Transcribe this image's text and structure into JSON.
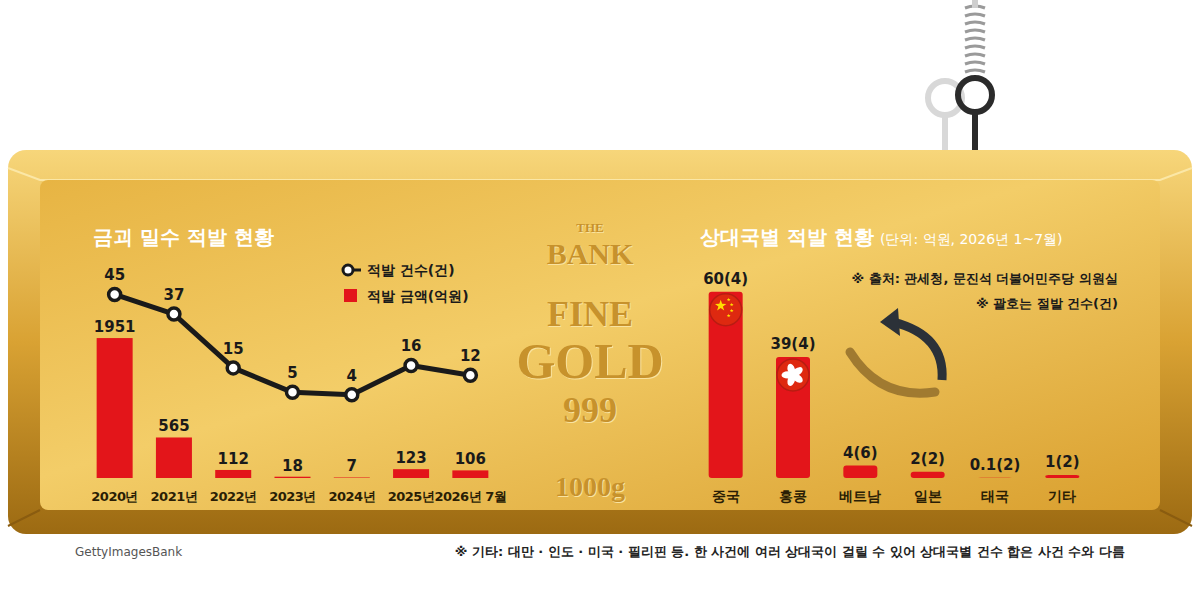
{
  "chart_data": [
    {
      "type": "bar",
      "title": "금괴 밀수 적발 현황",
      "categories": [
        "2020년",
        "2021년",
        "2022년",
        "2023년",
        "2024년",
        "2025년",
        "2026년 7월"
      ],
      "series": [
        {
          "name": "적발 건수(건)",
          "type": "line",
          "color": "#1a1a1a",
          "marker": "circle",
          "axis": "y2",
          "values": [
            45,
            37,
            15,
            5,
            4,
            16,
            12
          ]
        },
        {
          "name": "적발 금액(억원)",
          "type": "bar",
          "color": "#e3151a",
          "values": [
            1951,
            565,
            112,
            18,
            7,
            123,
            106
          ]
        }
      ],
      "ylim": [
        0,
        2900
      ],
      "y2lim": [
        -30,
        55
      ],
      "data_labels": true,
      "tick_labels": "x",
      "legend": "top-right",
      "grid": false
    },
    {
      "type": "bar",
      "title": "상대국별 적발 현황",
      "subtitle": "(단위: 억원, 2026년 1~7월)",
      "categories": [
        "중국",
        "홍콩",
        "베트남",
        "일본",
        "태국",
        "기타"
      ],
      "values": [
        60,
        39,
        4,
        2,
        0.1,
        1
      ],
      "value_labels": [
        "60(4)",
        "39(4)",
        "4(6)",
        "2(2)",
        "0.1(2)",
        "1(2)"
      ],
      "color": "#e3151a",
      "ylim": [
        0,
        67
      ],
      "data_labels": true,
      "tick_labels": "x",
      "grid": false,
      "annotations": [
        "※ 출처: 관세청, 문진석 더불어민주당 의원실",
        "※ 괄호는 절발 건수(건)",
        "※ 기타: 대만 · 인도 · 미국 · 필리핀 등. 한 사건에 여러 상대국이 걸릴 수 있어 상대국별 건수 합은 사건 수와 다름"
      ]
    }
  ],
  "ingot_text": [
    "THE",
    "BANK",
    "FINE",
    "GOLD",
    "999",
    "1000g"
  ],
  "credit": "GettyImagesBank"
}
